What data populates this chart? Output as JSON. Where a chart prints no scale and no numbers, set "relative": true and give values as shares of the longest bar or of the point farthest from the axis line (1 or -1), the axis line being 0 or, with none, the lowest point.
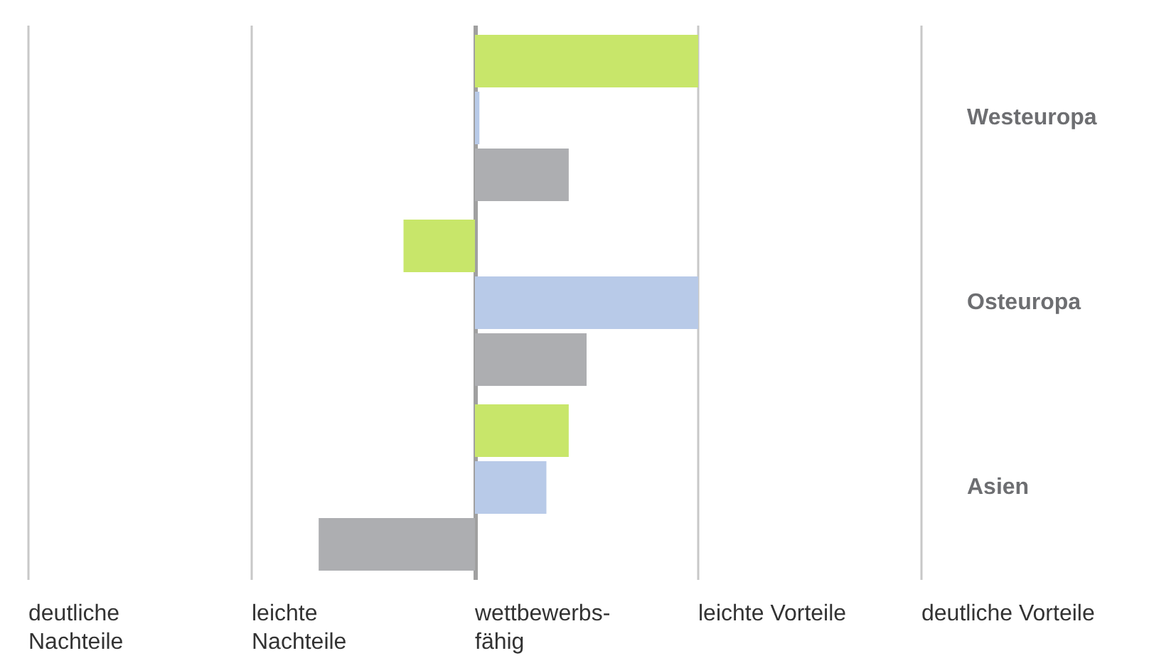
{
  "chart_data": {
    "type": "bar",
    "orientation": "horizontal",
    "relative": true,
    "categories": [
      "Westeuropa",
      "Osteuropa",
      "Asien"
    ],
    "series": [
      {
        "color": "#c8e66a",
        "values": [
          1.0,
          -0.32,
          0.42
        ]
      },
      {
        "color": "#b8cae8",
        "values": [
          0.02,
          1.0,
          0.32
        ]
      },
      {
        "color": "#adaeb1",
        "values": [
          0.42,
          0.5,
          -0.7
        ]
      }
    ],
    "annotations": [
      "deutliche\nNachteile",
      "leichte\nNachteile",
      "wettbewerbs-\nfähig",
      "leichte Vorteile",
      "deutliche Vorteile"
    ]
  }
}
